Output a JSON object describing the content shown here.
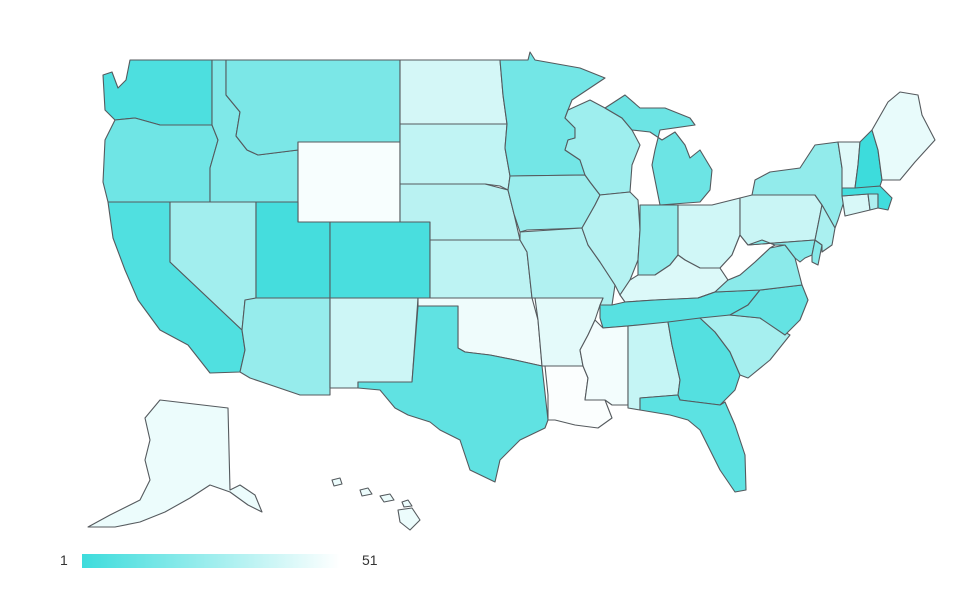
{
  "map": {
    "scale_colors": {
      "low": "#3ddcdc",
      "high": "#ffffff",
      "stroke": "#555a5e"
    },
    "states": [
      {
        "id": "WA",
        "rank": 5
      },
      {
        "id": "OR",
        "rank": 14
      },
      {
        "id": "CA",
        "rank": 6
      },
      {
        "id": "ID",
        "rank": 18
      },
      {
        "id": "NV",
        "rank": 27
      },
      {
        "id": "MT",
        "rank": 17
      },
      {
        "id": "WY",
        "rank": 49
      },
      {
        "id": "UT",
        "rank": 3
      },
      {
        "id": "AZ",
        "rank": 24
      },
      {
        "id": "CO",
        "rank": 4
      },
      {
        "id": "NM",
        "rank": 38
      },
      {
        "id": "ND",
        "rank": 40
      },
      {
        "id": "SD",
        "rank": 35
      },
      {
        "id": "NE",
        "rank": 33
      },
      {
        "id": "KS",
        "rank": 34
      },
      {
        "id": "OK",
        "rank": 47
      },
      {
        "id": "TX",
        "rank": 10
      },
      {
        "id": "MN",
        "rank": 15
      },
      {
        "id": "IA",
        "rank": 25
      },
      {
        "id": "MO",
        "rank": 31
      },
      {
        "id": "AR",
        "rank": 44
      },
      {
        "id": "LA",
        "rank": 50
      },
      {
        "id": "WI",
        "rank": 26
      },
      {
        "id": "IL",
        "rank": 32
      },
      {
        "id": "MI",
        "rank": 13
      },
      {
        "id": "IN",
        "rank": 22
      },
      {
        "id": "OH",
        "rank": 39
      },
      {
        "id": "KY",
        "rank": 42
      },
      {
        "id": "TN",
        "rank": 8
      },
      {
        "id": "MS",
        "rank": 48
      },
      {
        "id": "AL",
        "rank": 36
      },
      {
        "id": "GA",
        "rank": 7
      },
      {
        "id": "FL",
        "rank": 9
      },
      {
        "id": "SC",
        "rank": 28
      },
      {
        "id": "NC",
        "rank": 11
      },
      {
        "id": "VA",
        "rank": 21
      },
      {
        "id": "WV",
        "rank": 51
      },
      {
        "id": "PA",
        "rank": 37
      },
      {
        "id": "NY",
        "rank": 23
      },
      {
        "id": "MD",
        "rank": 19
      },
      {
        "id": "DE",
        "rank": 20
      },
      {
        "id": "NJ",
        "rank": 29
      },
      {
        "id": "CT",
        "rank": 41
      },
      {
        "id": "RI",
        "rank": 30
      },
      {
        "id": "MA",
        "rank": 2
      },
      {
        "id": "VT",
        "rank": 43
      },
      {
        "id": "NH",
        "rank": 1
      },
      {
        "id": "ME",
        "rank": 45
      },
      {
        "id": "AK",
        "rank": 46
      },
      {
        "id": "HI",
        "rank": 46
      }
    ]
  },
  "legend": {
    "min": "1",
    "max": "51"
  }
}
